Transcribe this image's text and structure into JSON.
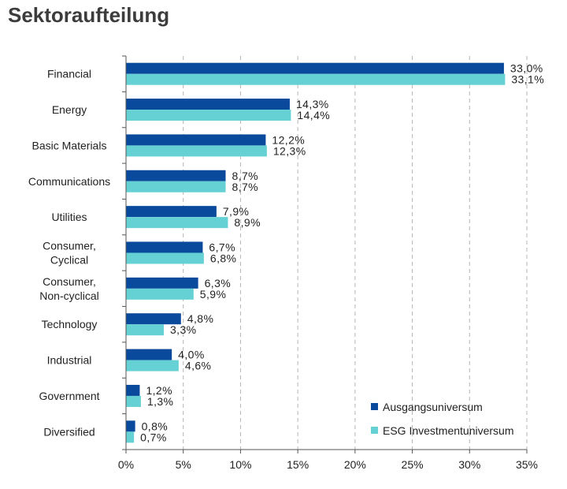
{
  "title": "Sektoraufteilung",
  "colors": {
    "series1": "#0a4a9c",
    "series2": "#66d1d4",
    "grid": "#b5b5b5",
    "axis": "#555555",
    "text": "#222222"
  },
  "chart_data": {
    "type": "bar",
    "orientation": "horizontal",
    "title": "Sektoraufteilung",
    "categories": [
      "Financial",
      "Energy",
      "Basic Materials",
      "Communications",
      "Utilities",
      "Consumer, Cyclical",
      "Consumer, Non-cyclical",
      "Technology",
      "Industrial",
      "Government",
      "Diversified"
    ],
    "category_lines": [
      [
        "Financial"
      ],
      [
        "Energy"
      ],
      [
        "Basic Materials"
      ],
      [
        "Communications"
      ],
      [
        "Utilities"
      ],
      [
        "Consumer,",
        "Cyclical"
      ],
      [
        "Consumer,",
        "Non-cyclical"
      ],
      [
        "Technology"
      ],
      [
        "Industrial"
      ],
      [
        "Government"
      ],
      [
        "Diversified"
      ]
    ],
    "series": [
      {
        "name": "Ausgangsuniversum",
        "values": [
          33.0,
          14.3,
          12.2,
          8.7,
          7.9,
          6.7,
          6.3,
          4.8,
          4.0,
          1.2,
          0.8
        ],
        "labels": [
          "33,0%",
          "14,3%",
          "12,2%",
          "8,7%",
          "7,9%",
          "6,7%",
          "6,3%",
          "4,8%",
          "4,0%",
          "1,2%",
          "0,8%"
        ]
      },
      {
        "name": "ESG Investmentuniversum",
        "values": [
          33.1,
          14.4,
          12.3,
          8.7,
          8.9,
          6.8,
          5.9,
          3.3,
          4.6,
          1.3,
          0.7
        ],
        "labels": [
          "33,1%",
          "14,4%",
          "12,3%",
          "8,7%",
          "8,9%",
          "6,8%",
          "5,9%",
          "3,3%",
          "4,6%",
          "1,3%",
          "0,7%"
        ]
      }
    ],
    "xlim": [
      0,
      35
    ],
    "xticks": [
      0,
      5,
      10,
      15,
      20,
      25,
      30,
      35
    ],
    "xtick_labels": [
      "0%",
      "5%",
      "10%",
      "15%",
      "20%",
      "25%",
      "30%",
      "35%"
    ],
    "grid": "vertical dashed",
    "legend_position": "bottom-right"
  }
}
